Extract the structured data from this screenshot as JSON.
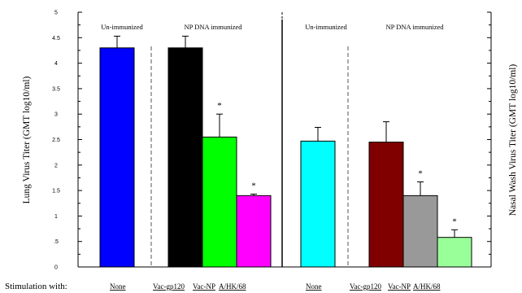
{
  "chart_data": {
    "type": "bar",
    "y_left_label": "Lung Virus Titer (GMT log10/ml)",
    "y_right_label": "Nasal Wash Virus Titer (GMT log10/ml)",
    "ylim": [
      0,
      5
    ],
    "y_ticks": [
      {
        "value": 0,
        "label": "0"
      },
      {
        "value": 0.5,
        "label": ".5"
      },
      {
        "value": 1,
        "label": "1"
      },
      {
        "value": 1.5,
        "label": "1.5"
      },
      {
        "value": 2,
        "label": "2"
      },
      {
        "value": 2.5,
        "label": "2.5"
      },
      {
        "value": 3,
        "label": "3"
      },
      {
        "value": 3.5,
        "label": "3.5"
      },
      {
        "value": 4,
        "label": "4"
      },
      {
        "value": 4.5,
        "label": "4.5"
      },
      {
        "value": 5,
        "label": "5"
      }
    ],
    "stimulation_label": "Stimulation with:",
    "panels": [
      {
        "group_labels": [
          "Un-immunized",
          "NP DNA immunized"
        ],
        "bars": [
          {
            "category": "None",
            "value": 4.3,
            "error": 0.23,
            "color": "#0000ff",
            "star": ""
          },
          {
            "category": "Vac-gp120",
            "value": 4.3,
            "error": 0.23,
            "color": "#000000",
            "star": ""
          },
          {
            "category": "Vac-NP",
            "value": 2.55,
            "error": 0.45,
            "color": "#00ff00",
            "star": "*"
          },
          {
            "category": "A/HK/68",
            "value": 1.4,
            "error": 0.03,
            "color": "#ff00ff",
            "star": "*"
          }
        ]
      },
      {
        "group_labels": [
          "Un-immunized",
          "NP DNA immunized"
        ],
        "bars": [
          {
            "category": "None",
            "value": 2.47,
            "error": 0.27,
            "color": "#00ffff",
            "star": ""
          },
          {
            "category": "Vac-gp120",
            "value": 2.45,
            "error": 0.4,
            "color": "#800000",
            "star": ""
          },
          {
            "category": "Vac-NP",
            "value": 1.4,
            "error": 0.27,
            "color": "#999999",
            "star": "*"
          },
          {
            "category": "A/HK/68",
            "value": 0.58,
            "error": 0.15,
            "color": "#99ff99",
            "star": "*"
          }
        ]
      }
    ]
  }
}
